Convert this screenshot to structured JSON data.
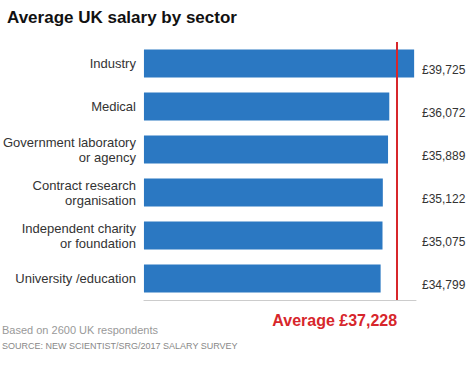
{
  "chart_data": {
    "type": "bar",
    "title": "Average UK salary by sector",
    "orientation": "horizontal",
    "categories": [
      "Industry",
      "Medical",
      "Government laboratory\nor agency",
      "Contract research\norganisation",
      "Independent charity\nor foundation",
      "University /education"
    ],
    "values": [
      39725,
      36072,
      35889,
      35122,
      35075,
      34799
    ],
    "value_labels": [
      "£39,725",
      "£36,072",
      "£35,889",
      "£35,122",
      "£35,075",
      "£34,799"
    ],
    "data_labels": true,
    "color": "#2b78c2",
    "xlim": [
      0,
      40000
    ],
    "tick_labels": "y",
    "grid": false,
    "annotations": [
      {
        "text": "Average £37,228",
        "value": 37228,
        "color": "#d7262b"
      }
    ],
    "footnote": [
      "Based on 2600 UK respondents",
      "SOURCE: NEW SCIENTIST/SRG/2017 SALARY SURVEY"
    ]
  }
}
